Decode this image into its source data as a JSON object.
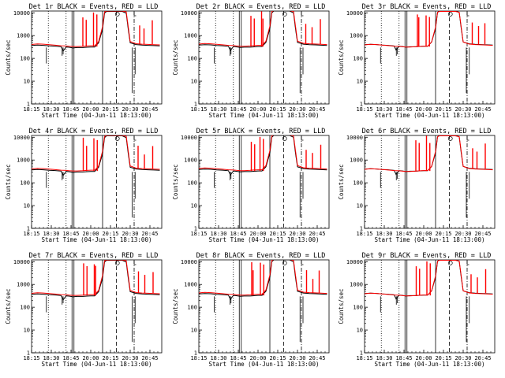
{
  "figure": {
    "panel_titles": [
      "Det 1r BLACK = Events, RED = LLD",
      "Det 2r BLACK = Events, RED = LLD",
      "Det 3r BLACK = Events, RED = LLD",
      "Det 4r BLACK = Events, RED = LLD",
      "Det 5r BLACK = Events, RED = LLD",
      "Det 6r BLACK = Events, RED = LLD",
      "Det 7r BLACK = Events, RED = LLD",
      "Det 8r BLACK = Events, RED = LLD",
      "Det 9r BLACK = Events, RED = LLD"
    ],
    "xlabel": "Start Time (04-Jun-11 18:13:00)",
    "ylabel": "Counts/sec",
    "x_ticks": [
      "18:15",
      "18:30",
      "18:45",
      "20:00",
      "20:15",
      "20:30",
      "20:45"
    ],
    "y_ticks": [
      "1",
      "10",
      "100",
      "1000",
      "10000"
    ],
    "colors": {
      "events": "#000000",
      "lld": "#ff0000",
      "axes": "#000000"
    }
  },
  "chart_data": {
    "type": "line",
    "layout": "3x3 grid of panels",
    "y_scale": "log",
    "ylim": [
      1,
      12000
    ],
    "x_ticks": [
      "18:15",
      "18:30",
      "18:45",
      "20:00",
      "20:15",
      "20:30",
      "20:45"
    ],
    "xlim": [
      0,
      6.6
    ],
    "x_units": "tick index",
    "series": [
      {
        "name": "Events",
        "color": "#000000",
        "x": [
          -0.1,
          0.3,
          0.6,
          0.9,
          1.2,
          1.5,
          1.6,
          1.75,
          1.9,
          2.1,
          2.3,
          2.6,
          2.8,
          3.0,
          3.2,
          3.4,
          3.6,
          3.7,
          3.8,
          3.95,
          4.1,
          4.3,
          4.6,
          4.8,
          4.9,
          5.0,
          5.3,
          5.6,
          5.9,
          6.2,
          6.5
        ],
        "y": [
          380,
          400,
          390,
          370,
          360,
          340,
          220,
          330,
          320,
          300,
          310,
          310,
          320,
          330,
          330,
          500,
          2000,
          10000,
          12000,
          12000,
          12000,
          12000,
          12000,
          10000,
          2000,
          500,
          420,
          400,
          390,
          380,
          370
        ]
      },
      {
        "name": "LLD",
        "color": "#ff0000",
        "x": [
          -0.1,
          0.3,
          0.6,
          0.9,
          1.2,
          1.5,
          1.75,
          1.9,
          2.1,
          2.3,
          2.6,
          2.8,
          3.0,
          3.2,
          3.4,
          3.6,
          3.7,
          3.8,
          3.95,
          4.1,
          4.3,
          4.6,
          4.8,
          4.9,
          5.0,
          5.3,
          5.6,
          5.9,
          6.2,
          6.5
        ],
        "y": [
          400,
          430,
          420,
          400,
          380,
          360,
          350,
          340,
          330,
          330,
          340,
          350,
          360,
          360,
          550,
          2500,
          11000,
          12000,
          12000,
          12000,
          12000,
          12000,
          11000,
          2500,
          550,
          440,
          420,
          410,
          400,
          390
        ]
      }
    ],
    "red_spikes_x": [
      2.6,
      2.75,
      3.1,
      3.25,
      5.4,
      5.7,
      6.1
    ],
    "red_spikes_y": [
      9000,
      6000,
      11000,
      8000,
      4000,
      2500,
      5000
    ],
    "black_dips_x": [
      0.75,
      1.55,
      1.6,
      5.1,
      5.25
    ],
    "black_dips_y": [
      60,
      130,
      150,
      3,
      20
    ],
    "vertical_markers": [
      {
        "style": "dotted",
        "x": 0.85
      },
      {
        "style": "dotted",
        "x": 1.75
      },
      {
        "style": "solid",
        "x": 2.05
      },
      {
        "style": "solid",
        "x": 2.15
      },
      {
        "style": "solid",
        "x": 3.6
      },
      {
        "style": "dashed",
        "x": 4.3
      },
      {
        "style": "dashdot",
        "x": 5.2
      }
    ]
  }
}
